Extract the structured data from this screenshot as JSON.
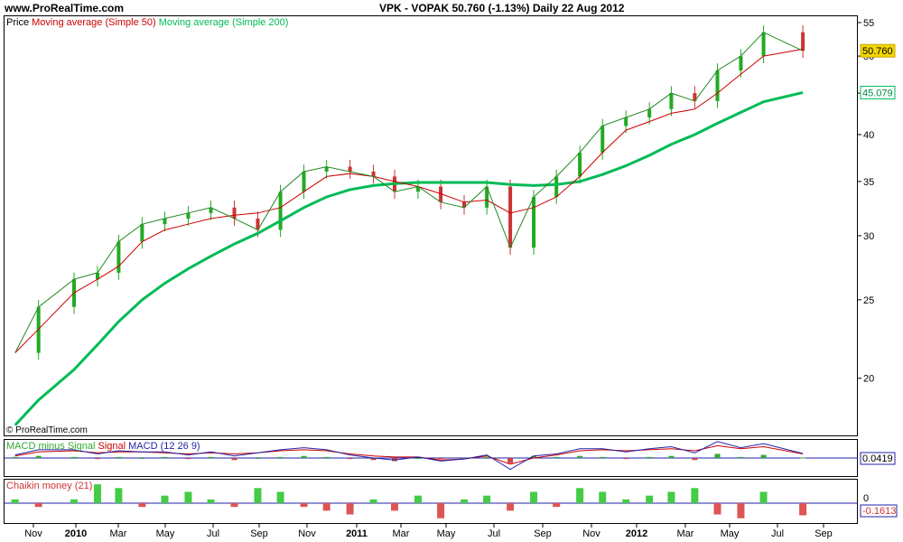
{
  "header": {
    "site": "www.ProRealTime.com",
    "title": "VPK - VOPAK    50.760 (-1.13%)    Daily  22 Aug 2012"
  },
  "price_panel": {
    "legend": [
      {
        "label": "Price",
        "color": "#000000"
      },
      {
        "label": "Moving average (Simple 50)",
        "color": "#cc0000"
      },
      {
        "label": "Moving average (Simple 200)",
        "color": "#00bb55"
      }
    ],
    "copyright": "© ProRealTime.com",
    "last_price_tag": "50.760",
    "ma200_tag": "45.079",
    "y_ticks": [
      "55",
      "50",
      "45",
      "40",
      "35",
      "30",
      "25",
      "20"
    ]
  },
  "macd_panel": {
    "legend": [
      {
        "label": "MACD minus Signal",
        "color": "#33aa33"
      },
      {
        "label": "Signal",
        "color": "#cc0000"
      },
      {
        "label": "MACD (12 26 9)",
        "color": "#2222aa"
      }
    ],
    "value_tag": "0.0419"
  },
  "chaikin_panel": {
    "legend": "Chaikin money (21)",
    "zero_label": "0",
    "value_tag": "-0.1613"
  },
  "x_axis": [
    {
      "label": "Nov",
      "bold": false
    },
    {
      "label": "2010",
      "bold": true
    },
    {
      "label": "Mar",
      "bold": false
    },
    {
      "label": "May",
      "bold": false
    },
    {
      "label": "Jul",
      "bold": false
    },
    {
      "label": "Sep",
      "bold": false
    },
    {
      "label": "Nov",
      "bold": false
    },
    {
      "label": "2011",
      "bold": true
    },
    {
      "label": "Mar",
      "bold": false
    },
    {
      "label": "May",
      "bold": false
    },
    {
      "label": "Jul",
      "bold": false
    },
    {
      "label": "Sep",
      "bold": false
    },
    {
      "label": "Nov",
      "bold": false
    },
    {
      "label": "2012",
      "bold": true
    },
    {
      "label": "Mar",
      "bold": false
    },
    {
      "label": "May",
      "bold": false
    },
    {
      "label": "Jul",
      "bold": false
    },
    {
      "label": "Sep",
      "bold": false
    }
  ],
  "chart_data": [
    {
      "type": "candlestick",
      "title": "VPK - VOPAK",
      "ylim": [
        17,
        56
      ],
      "y_scale": "log",
      "grid": false,
      "x": [
        "2009-10-15",
        "2009-11-15",
        "2010-01-01",
        "2010-02-01",
        "2010-03-01",
        "2010-04-01",
        "2010-05-01",
        "2010-06-01",
        "2010-07-01",
        "2010-08-01",
        "2010-09-01",
        "2010-10-01",
        "2010-11-01",
        "2010-12-01",
        "2011-01-01",
        "2011-02-01",
        "2011-03-01",
        "2011-04-01",
        "2011-05-01",
        "2011-06-01",
        "2011-07-01",
        "2011-08-01",
        "2011-09-01",
        "2011-10-01",
        "2011-11-01",
        "2011-12-01",
        "2012-01-01",
        "2012-02-01",
        "2012-03-01",
        "2012-04-01",
        "2012-05-01",
        "2012-06-01",
        "2012-07-01",
        "2012-08-22"
      ],
      "series": [
        {
          "name": "Price",
          "values": [
            21.5,
            24.5,
            26.5,
            27.0,
            29.5,
            31.0,
            31.5,
            32.0,
            32.5,
            31.5,
            30.5,
            34.0,
            36.0,
            36.5,
            36.0,
            35.5,
            34.0,
            34.5,
            33.0,
            32.5,
            34.5,
            29.0,
            33.5,
            35.5,
            38.0,
            41.0,
            42.0,
            43.0,
            45.0,
            44.0,
            48.0,
            50.0,
            53.5,
            50.76
          ]
        },
        {
          "name": "Moving average (Simple 50)",
          "values": [
            21.5,
            23.0,
            25.5,
            26.5,
            27.5,
            29.5,
            30.5,
            31.0,
            31.5,
            31.8,
            32.0,
            32.5,
            34.0,
            35.5,
            35.8,
            35.5,
            35.0,
            34.5,
            33.8,
            33.0,
            33.2,
            32.0,
            32.5,
            33.5,
            35.5,
            38.0,
            40.5,
            41.5,
            42.5,
            43.0,
            45.0,
            47.5,
            50.0,
            51.0
          ]
        },
        {
          "name": "Moving average (Simple 200)",
          "values": [
            17.5,
            18.8,
            20.5,
            22.0,
            23.5,
            25.0,
            26.2,
            27.3,
            28.3,
            29.3,
            30.2,
            31.3,
            32.5,
            33.5,
            34.2,
            34.6,
            34.8,
            34.9,
            34.9,
            34.9,
            34.9,
            34.7,
            34.6,
            34.7,
            35.0,
            35.7,
            36.6,
            37.7,
            38.9,
            40.0,
            41.3,
            42.6,
            43.9,
            45.079
          ]
        }
      ]
    },
    {
      "type": "line",
      "title": "MACD (12 26 9)",
      "series": [
        {
          "name": "MACD minus Signal",
          "values": [
            0.1,
            0.2,
            0.1,
            -0.1,
            0.1,
            0.0,
            0.1,
            -0.1,
            0.1,
            -0.2,
            0.0,
            0.1,
            0.2,
            0.1,
            -0.1,
            -0.2,
            -0.3,
            0.0,
            -0.1,
            0.0,
            0.1,
            -0.5,
            0.2,
            0.1,
            0.2,
            0.1,
            -0.1,
            0.1,
            0.2,
            -0.2,
            0.4,
            0.1,
            0.3,
            0.0419
          ]
        },
        {
          "name": "Signal",
          "values": [
            0.2,
            0.6,
            0.7,
            0.5,
            0.6,
            0.6,
            0.5,
            0.4,
            0.5,
            0.4,
            0.5,
            0.7,
            0.8,
            0.7,
            0.4,
            0.2,
            0.1,
            0.1,
            -0.2,
            -0.1,
            0.2,
            -0.6,
            0.0,
            0.3,
            0.7,
            0.8,
            0.7,
            0.8,
            0.9,
            0.7,
            1.2,
            0.9,
            1.1,
            0.4
          ]
        },
        {
          "name": "MACD",
          "values": [
            0.3,
            0.8,
            0.8,
            0.4,
            0.7,
            0.6,
            0.6,
            0.3,
            0.6,
            0.2,
            0.5,
            0.8,
            1.0,
            0.8,
            0.3,
            0.0,
            -0.2,
            0.1,
            -0.3,
            -0.1,
            0.3,
            -1.1,
            0.2,
            0.4,
            0.9,
            0.9,
            0.6,
            0.9,
            1.1,
            0.5,
            1.6,
            1.0,
            1.4,
            0.4419
          ]
        }
      ]
    },
    {
      "type": "bar",
      "title": "Chaikin money (21)",
      "series": [
        {
          "name": "Chaikin money (21)",
          "values": [
            0.05,
            -0.05,
            0.05,
            0.25,
            0.2,
            -0.05,
            0.1,
            0.15,
            0.05,
            -0.05,
            0.2,
            0.15,
            -0.05,
            -0.1,
            -0.15,
            0.05,
            -0.1,
            0.1,
            -0.2,
            0.05,
            0.1,
            -0.1,
            0.15,
            -0.05,
            0.2,
            0.15,
            0.05,
            0.1,
            0.15,
            0.2,
            -0.15,
            -0.2,
            0.15,
            -0.1613
          ]
        }
      ]
    }
  ]
}
